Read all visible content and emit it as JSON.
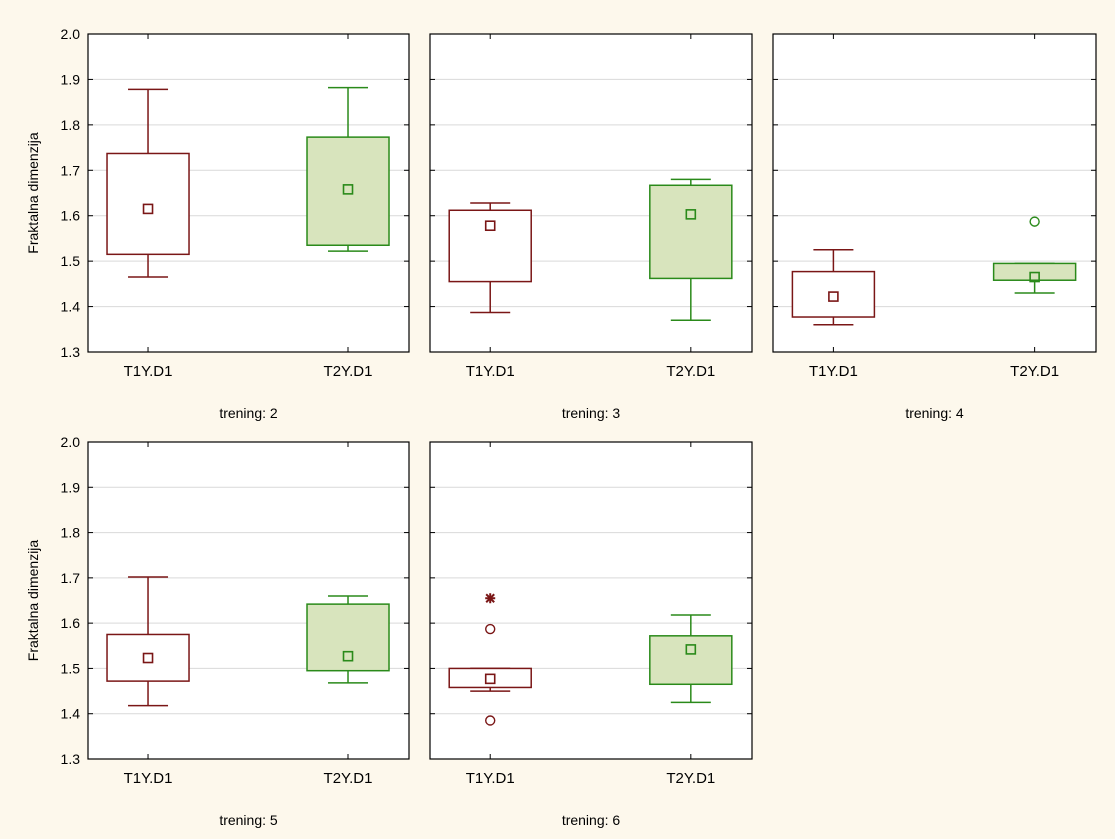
{
  "chart_data": {
    "type": "boxplot",
    "y_label": "Fraktalna dimenzija",
    "y_ticks": [
      "2.0",
      "1.9",
      "1.8",
      "1.7",
      "1.6",
      "1.5",
      "1.4",
      "1.3"
    ],
    "ylim": [
      1.3,
      2.0
    ],
    "grid": true,
    "categories": [
      "T1Y.D1",
      "T2Y.D1"
    ],
    "series_colors": {
      "T1Y.D1": "#7a1616",
      "T2Y.D1": "#2a8a1a"
    },
    "box_fill": {
      "T1Y.D1": "#ffffff",
      "T2Y.D1": "#d8e4bd"
    },
    "panels": [
      {
        "title": "trening: 2",
        "boxes": [
          {
            "category": "T1Y.D1",
            "whisker_low": 1.465,
            "q1": 1.515,
            "median": 1.615,
            "q3": 1.737,
            "whisker_high": 1.878,
            "outliers": [],
            "extremes": []
          },
          {
            "category": "T2Y.D1",
            "whisker_low": 1.522,
            "q1": 1.535,
            "median": 1.658,
            "q3": 1.773,
            "whisker_high": 1.882,
            "outliers": [],
            "extremes": []
          }
        ]
      },
      {
        "title": "trening: 3",
        "boxes": [
          {
            "category": "T1Y.D1",
            "whisker_low": 1.387,
            "q1": 1.455,
            "median": 1.578,
            "q3": 1.612,
            "whisker_high": 1.628,
            "outliers": [],
            "extremes": []
          },
          {
            "category": "T2Y.D1",
            "whisker_low": 1.37,
            "q1": 1.462,
            "median": 1.603,
            "q3": 1.667,
            "whisker_high": 1.68,
            "outliers": [],
            "extremes": []
          }
        ]
      },
      {
        "title": "trening: 4",
        "boxes": [
          {
            "category": "T1Y.D1",
            "whisker_low": 1.36,
            "q1": 1.377,
            "median": 1.422,
            "q3": 1.477,
            "whisker_high": 1.525,
            "outliers": [],
            "extremes": []
          },
          {
            "category": "T2Y.D1",
            "whisker_low": 1.43,
            "q1": 1.458,
            "median": 1.465,
            "q3": 1.495,
            "whisker_high": 1.495,
            "outliers": [
              1.587
            ],
            "extremes": []
          }
        ]
      },
      {
        "title": "trening: 5",
        "boxes": [
          {
            "category": "T1Y.D1",
            "whisker_low": 1.418,
            "q1": 1.472,
            "median": 1.523,
            "q3": 1.575,
            "whisker_high": 1.702,
            "outliers": [],
            "extremes": []
          },
          {
            "category": "T2Y.D1",
            "whisker_low": 1.468,
            "q1": 1.495,
            "median": 1.527,
            "q3": 1.642,
            "whisker_high": 1.66,
            "outliers": [],
            "extremes": []
          }
        ]
      },
      {
        "title": "trening: 6",
        "boxes": [
          {
            "category": "T1Y.D1",
            "whisker_low": 1.45,
            "q1": 1.458,
            "median": 1.477,
            "q3": 1.5,
            "whisker_high": 1.5,
            "outliers": [
              1.587,
              1.385
            ],
            "extremes": [
              1.655
            ]
          },
          {
            "category": "T2Y.D1",
            "whisker_low": 1.425,
            "q1": 1.465,
            "median": 1.542,
            "q3": 1.572,
            "whisker_high": 1.618,
            "outliers": [],
            "extremes": []
          }
        ]
      }
    ]
  }
}
